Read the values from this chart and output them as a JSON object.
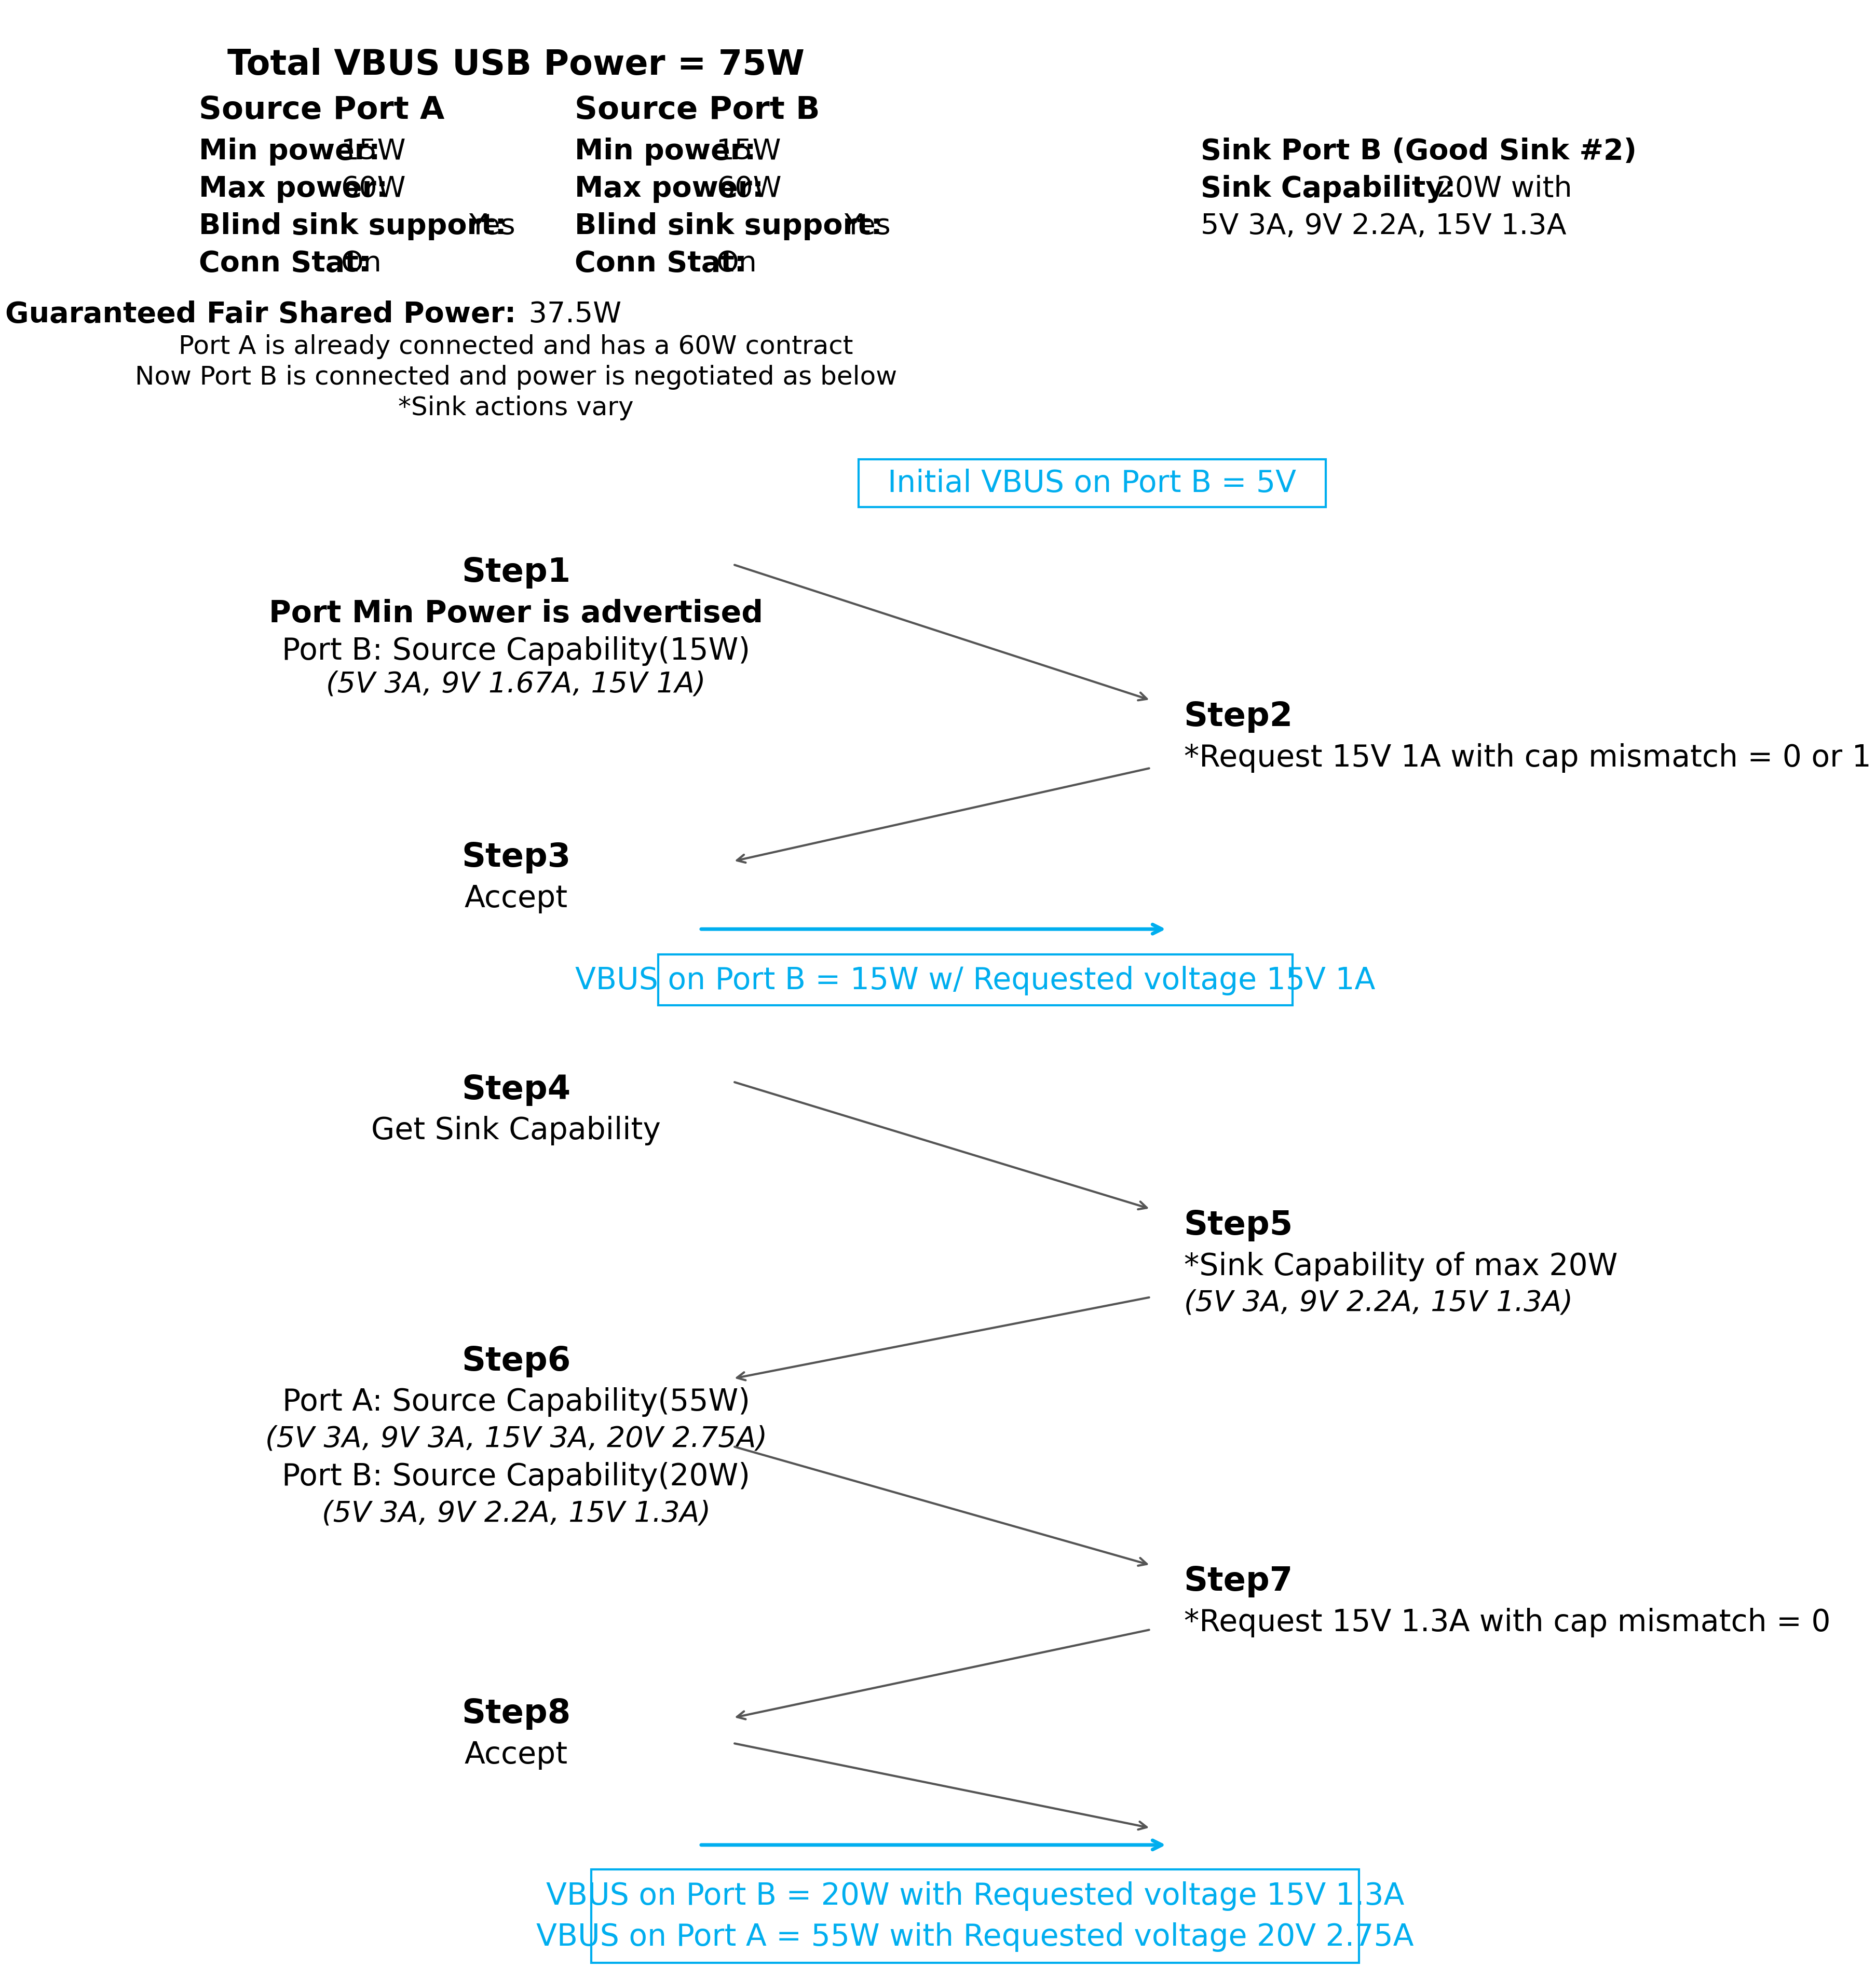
{
  "bg_color": "#ffffff",
  "header": {
    "total_power": "Total VBUS USB Power = 75W",
    "source_a_title": "Source Port A",
    "source_a_lines": [
      [
        "Min power:",
        "15W"
      ],
      [
        "Max power:",
        "60W"
      ],
      [
        "Blind sink support:",
        "Yes"
      ],
      [
        "Conn Stat:",
        "On"
      ]
    ],
    "source_b_title": "Source Port B",
    "source_b_lines": [
      [
        "Min power:",
        "15W"
      ],
      [
        "Max power:",
        "60W"
      ],
      [
        "Blind sink support:",
        "Yes"
      ],
      [
        "Conn Stat:",
        "On"
      ]
    ],
    "sink_b_title": "Sink Port B (Good Sink #2)",
    "sink_b_line1_bold": "Sink Capability:",
    "sink_b_line1_normal": " 20W with",
    "sink_b_line2": "5V 3A, 9V 2.2A, 15V 1.3A",
    "gfsp_bold": "Guaranteed Fair Shared Power:",
    "gfsp_normal": " 37.5W",
    "note1": "Port A is already connected and has a 60W contract",
    "note2": "Now Port B is connected and power is negotiated as below",
    "note3": "*Sink actions vary"
  },
  "initial_box": "Initial VBUS on Port B = 5V",
  "final_box1": "VBUS on Port B = 15W w/ Requested voltage 15V 1A",
  "final_box2_line1": "VBUS on Port B = 20W with Requested voltage 15V 1.3A",
  "final_box2_line2": "VBUS on Port A = 55W with Requested voltage 20V 2.75A",
  "steps": {
    "step1_label": "Step1",
    "step1_sub": "Port Min Power is advertised",
    "step1_detail": "Port B: Source Capability(15W)",
    "step1_italic": "(5V 3A, 9V 1.67A, 15V 1A)",
    "step2_label": "Step2",
    "step2_sub": "*Request 15V 1A with cap mismatch = 0 or 1",
    "step3_label": "Step3",
    "step3_sub": "Accept",
    "step4_label": "Step4",
    "step4_sub": "Get Sink Capability",
    "step5_label": "Step5",
    "step5_sub": "*Sink Capability of max 20W",
    "step5_italic": "(5V 3A, 9V 2.2A, 15V 1.3A)",
    "step6_label": "Step6",
    "step6_sub1": "Port A: Source Capability(55W)",
    "step6_italic1": "(5V 3A, 9V 3A, 15V 3A, 20V 2.75A)",
    "step6_sub2": "Port B: Source Capability(20W)",
    "step6_italic2": "(5V 3A, 9V 2.2A, 15V 1.3A)",
    "step7_label": "Step7",
    "step7_sub": "*Request 15V 1.3A with cap mismatch = 0",
    "step8_label": "Step8",
    "step8_sub": "Accept"
  },
  "colors": {
    "black": "#000000",
    "cyan": "#00AEEF",
    "box_border": "#00AEEF",
    "arrow_dark": "#555555",
    "arrow_cyan": "#00AEEF"
  }
}
